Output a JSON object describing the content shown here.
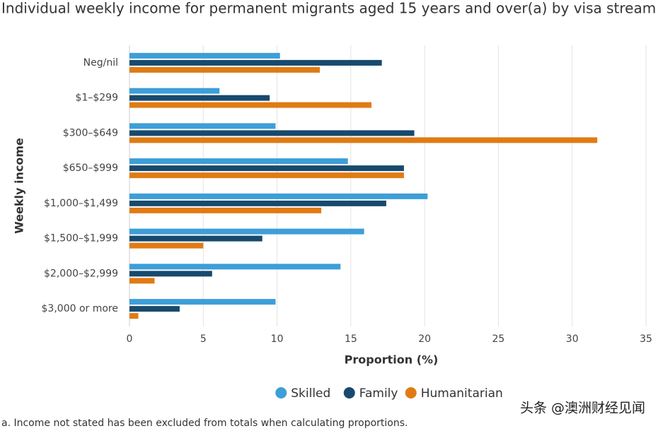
{
  "chart_data": {
    "type": "bar",
    "orientation": "horizontal",
    "title": "Individual weekly income for permanent migrants aged 15 years and over(a) by visa stream",
    "x_label": "Proportion (%)",
    "y_label": "Weekly income",
    "categories": [
      "Neg/nil",
      "$1–$299",
      "$300–$649",
      "$650–$999",
      "$1,000–$1,499",
      "$1,500–$1,999",
      "$2,000–$2,999",
      "$3,000 or more"
    ],
    "series": [
      {
        "name": "Skilled",
        "color": "#3d9ed8",
        "values": [
          10.2,
          6.1,
          9.9,
          14.8,
          20.2,
          15.9,
          14.3,
          9.9
        ]
      },
      {
        "name": "Family",
        "color": "#174a6e",
        "values": [
          17.1,
          9.5,
          19.3,
          18.6,
          17.4,
          9.0,
          5.6,
          3.4
        ]
      },
      {
        "name": "Humanitarian",
        "color": "#e07b14",
        "values": [
          12.9,
          16.4,
          31.7,
          18.6,
          13.0,
          5.0,
          1.7,
          0.6
        ]
      }
    ],
    "xlim": [
      0,
      35
    ],
    "xticks": [
      0,
      5,
      10,
      15,
      20,
      25,
      30,
      35
    ],
    "grid": true,
    "legend": "bottom",
    "footnote": "a. Income not stated has been excluded from totals when calculating proportions.",
    "watermark": "头条 @澳洲财经见闻"
  }
}
